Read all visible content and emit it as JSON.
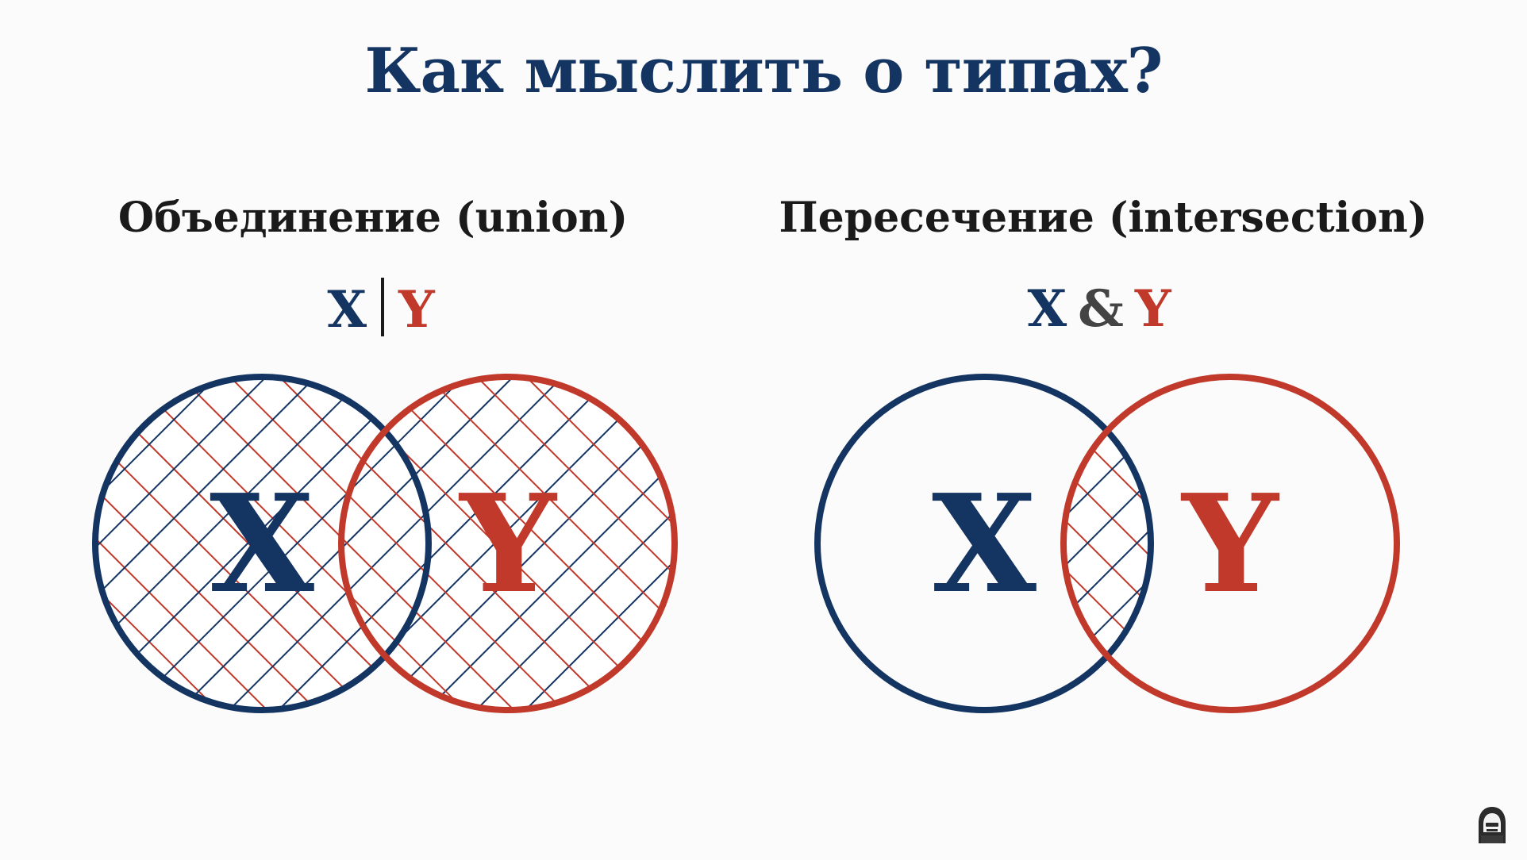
{
  "title": "Как мыслить о типах?",
  "colors": {
    "navy": "#143462",
    "red": "#c0392b",
    "dark": "#1a1a1a",
    "amp": "#444444"
  },
  "union": {
    "heading": "Объединение (union)",
    "formula_left": "X",
    "formula_right": "Y",
    "circle_left_label": "X",
    "circle_right_label": "Y"
  },
  "intersection": {
    "heading": "Пересечение (intersection)",
    "formula_left": "X",
    "formula_op": "&",
    "formula_right": "Y",
    "circle_left_label": "X",
    "circle_right_label": "Y"
  },
  "logo_icon": "hooded-figure-icon"
}
